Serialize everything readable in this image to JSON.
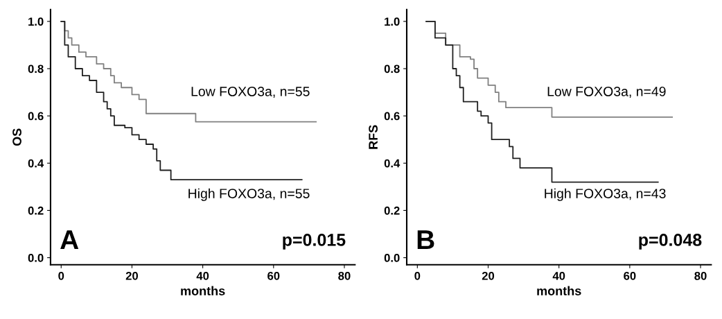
{
  "chart_data": [
    {
      "type": "step",
      "xlabel": "months",
      "ylabel": "OS",
      "xlim": [
        -3,
        83
      ],
      "ylim": [
        -0.03,
        1.05
      ],
      "xticks": [
        0,
        20,
        40,
        60,
        80
      ],
      "yticks": [
        {
          "value": 0,
          "label": "0.0"
        },
        {
          "value": 0.2,
          "label": "0.2"
        },
        {
          "value": 0.4,
          "label": "0.4"
        },
        {
          "value": 0.6,
          "label": "0.6"
        },
        {
          "value": 0.8,
          "label": "0.8"
        },
        {
          "value": 1,
          "label": "1.0"
        }
      ],
      "grid": false,
      "legend": false,
      "series": [
        {
          "color": "#808080",
          "x": [
            0,
            1,
            2,
            3,
            5,
            7,
            10,
            12,
            14,
            15,
            17,
            20,
            22,
            24,
            38,
            72
          ],
          "values": [
            1.0,
            0.96,
            0.93,
            0.9,
            0.87,
            0.85,
            0.82,
            0.8,
            0.77,
            0.74,
            0.72,
            0.69,
            0.67,
            0.61,
            0.575,
            0.575
          ]
        },
        {
          "color": "#202020",
          "x": [
            0,
            1,
            2,
            4,
            6,
            8,
            10,
            12,
            13,
            14,
            15,
            18,
            20,
            22,
            24,
            26,
            27,
            28,
            31,
            68
          ],
          "values": [
            1.0,
            0.9,
            0.85,
            0.8,
            0.77,
            0.75,
            0.7,
            0.66,
            0.63,
            0.6,
            0.56,
            0.55,
            0.52,
            0.5,
            0.48,
            0.46,
            0.41,
            0.37,
            0.33,
            0.33
          ]
        }
      ],
      "annotations": [
        "Low FOXO3a, n=55",
        "High FOXO3a, n=55",
        "A",
        "p=0.015"
      ]
    },
    {
      "type": "step",
      "xlabel": "months",
      "ylabel": "RFS",
      "xlim": [
        -3,
        83
      ],
      "ylim": [
        -0.03,
        1.05
      ],
      "xticks": [
        0,
        20,
        40,
        60,
        80
      ],
      "yticks": [
        {
          "value": 0,
          "label": "0.0"
        },
        {
          "value": 0.2,
          "label": "0.2"
        },
        {
          "value": 0.4,
          "label": "0.4"
        },
        {
          "value": 0.6,
          "label": "0.6"
        },
        {
          "value": 0.8,
          "label": "0.8"
        },
        {
          "value": 1,
          "label": "1.0"
        }
      ],
      "grid": false,
      "legend": false,
      "series": [
        {
          "color": "#808080",
          "x": [
            2.5,
            5,
            8,
            12,
            15,
            16,
            17,
            20,
            22,
            23,
            25,
            38,
            72
          ],
          "values": [
            1.0,
            0.95,
            0.9,
            0.85,
            0.84,
            0.8,
            0.76,
            0.73,
            0.7,
            0.66,
            0.635,
            0.595,
            0.595
          ]
        },
        {
          "color": "#202020",
          "x": [
            2.5,
            5,
            8,
            10,
            11,
            12,
            13,
            17,
            18,
            20,
            21,
            26,
            27,
            29,
            38,
            68
          ],
          "values": [
            1.0,
            0.93,
            0.9,
            0.8,
            0.77,
            0.72,
            0.66,
            0.62,
            0.6,
            0.57,
            0.5,
            0.47,
            0.42,
            0.38,
            0.32,
            0.32
          ]
        }
      ],
      "annotations": [
        "Low FOXO3a, n=49",
        "High FOXO3a, n=43",
        "B",
        "p=0.048"
      ]
    }
  ]
}
